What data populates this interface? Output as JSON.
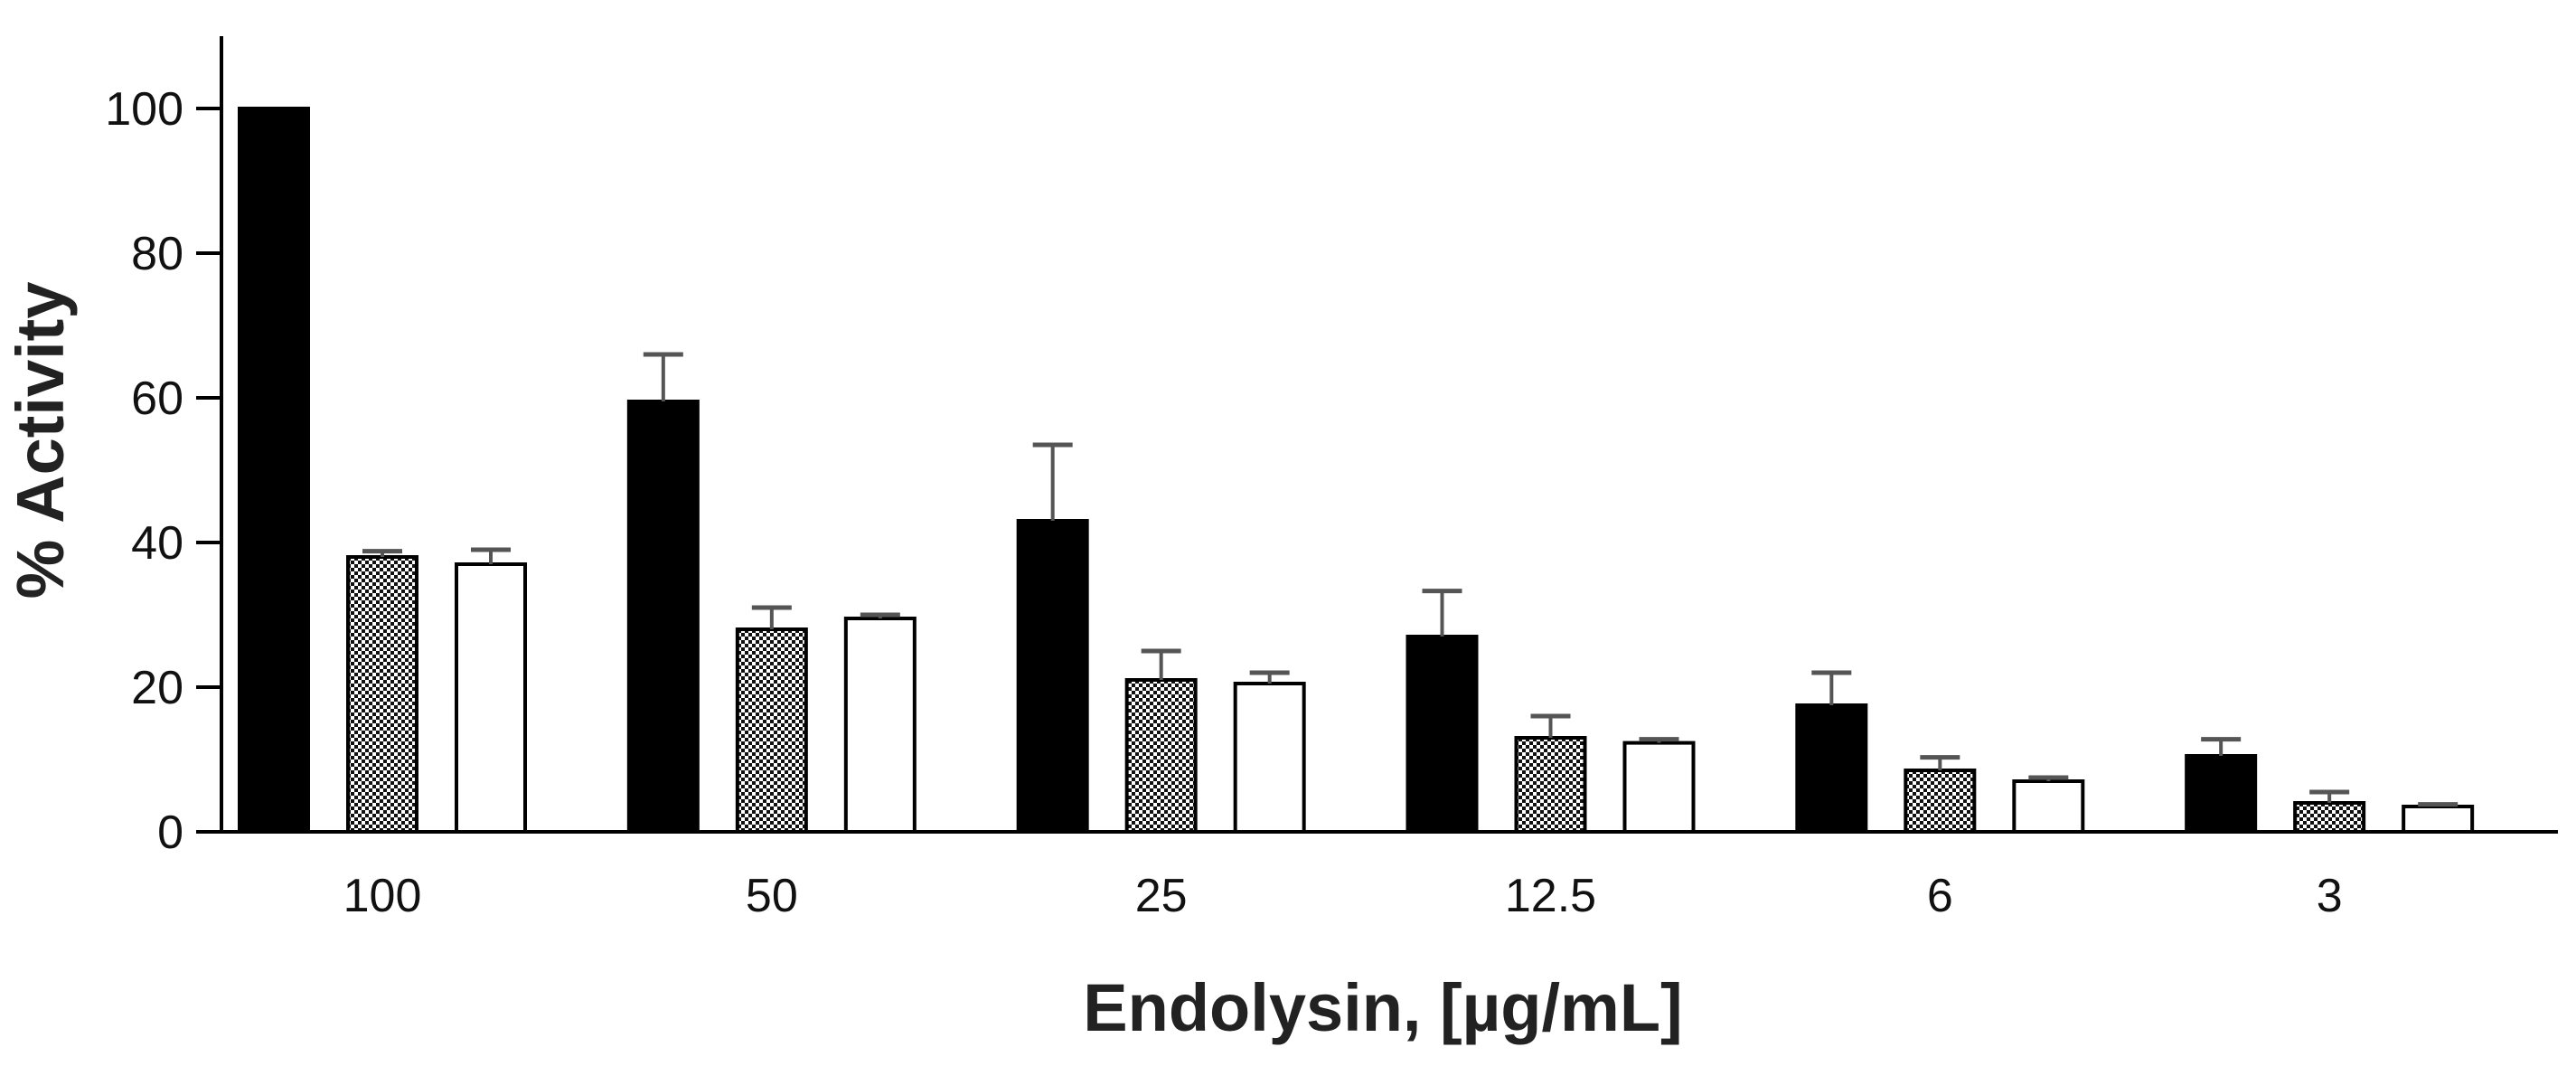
{
  "chart_data": {
    "type": "bar",
    "xlabel": "Endolysin, [µg/mL]",
    "ylabel": "% Activity",
    "categories": [
      "100",
      "50",
      "25",
      "12.5",
      "6",
      "3"
    ],
    "ylim": [
      0,
      110
    ],
    "yticks": [
      0,
      20,
      40,
      60,
      80,
      100
    ],
    "grid": false,
    "series": [
      {
        "fill": "black",
        "color": "#000000",
        "values": [
          100,
          59.5,
          43,
          27,
          17.5,
          10.5
        ],
        "errors": [
          0,
          6.5,
          10.5,
          6.3,
          4.5,
          2.3
        ]
      },
      {
        "fill": "checkered",
        "color": "#808080",
        "values": [
          38,
          28,
          21,
          13,
          8.5,
          4
        ],
        "errors": [
          0.8,
          3,
          4,
          3,
          1.8,
          1.5
        ]
      },
      {
        "fill": "white",
        "color": "#ffffff",
        "values": [
          37,
          29.5,
          20.5,
          12.3,
          7,
          3.5
        ],
        "errors": [
          2,
          0.5,
          1.5,
          0.5,
          0.5,
          0.3
        ]
      }
    ]
  }
}
